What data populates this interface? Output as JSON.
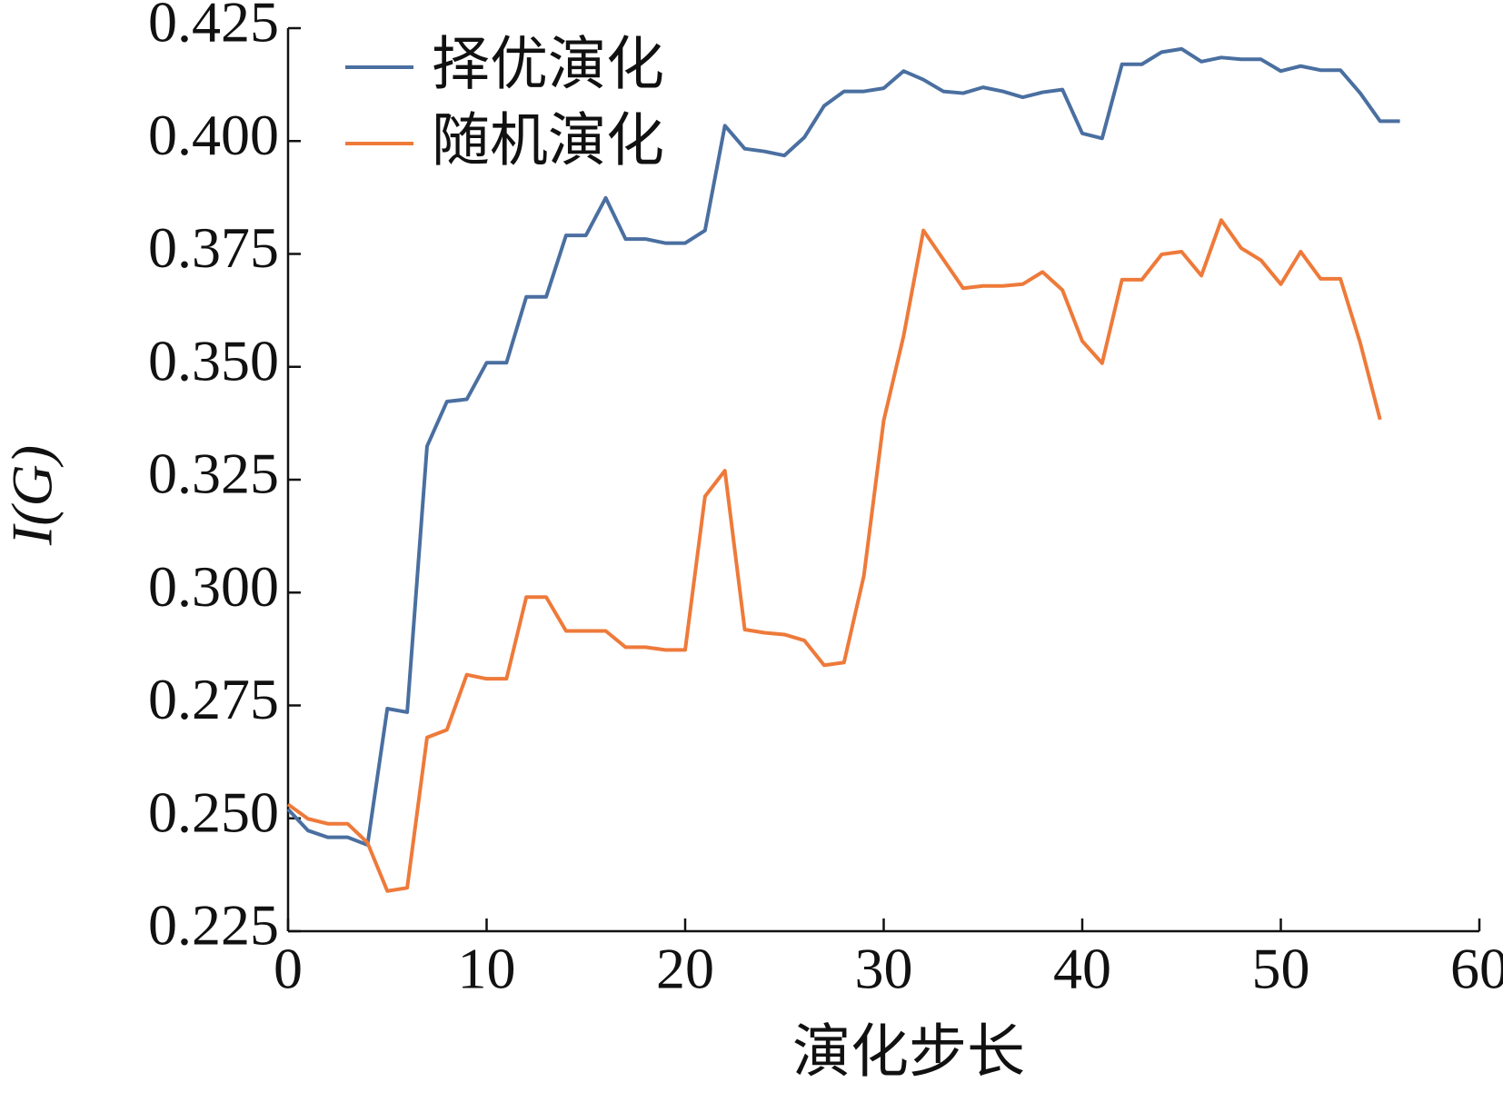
{
  "chart_data": {
    "type": "line",
    "xlabel": "演化步长",
    "ylabel": "I(G)",
    "xlim": [
      0,
      60
    ],
    "xticks": [
      0,
      10,
      20,
      30,
      40,
      50,
      60
    ],
    "ylim": [
      0.225,
      0.425
    ],
    "yticks": [
      0.225,
      {
        "value": 0.25,
        "label": "0.250"
      },
      0.275,
      {
        "value": 0.3,
        "label": "0.300"
      },
      0.325,
      {
        "value": 0.35,
        "label": "0.350"
      },
      0.375,
      {
        "value": 0.4,
        "label": "0.400"
      },
      0.425
    ],
    "legend": "upper left",
    "grid": false,
    "series": [
      {
        "name": "择优演化",
        "color": "#4a6fa0",
        "x": [
          0,
          1,
          2,
          3,
          4,
          5,
          6,
          7,
          8,
          9,
          10,
          11,
          12,
          13,
          14,
          15,
          16,
          17,
          18,
          19,
          20,
          21,
          22,
          23,
          24,
          25,
          26,
          27,
          28,
          29,
          30,
          31,
          32,
          33,
          34,
          35,
          36,
          37,
          38,
          39,
          40,
          41,
          42,
          43,
          44,
          45,
          46,
          47,
          48,
          49,
          50,
          51,
          52,
          53,
          54,
          55,
          56
        ],
        "values": [
          0.252,
          0.2473,
          0.2458,
          0.2458,
          0.2441,
          0.2743,
          0.2735,
          0.3324,
          0.3423,
          0.3428,
          0.3509,
          0.3509,
          0.3655,
          0.3655,
          0.3791,
          0.3791,
          0.3874,
          0.3783,
          0.3783,
          0.3774,
          0.3774,
          0.3802,
          0.4034,
          0.3983,
          0.3977,
          0.3968,
          0.4008,
          0.4078,
          0.411,
          0.411,
          0.4117,
          0.4155,
          0.4136,
          0.411,
          0.4106,
          0.4119,
          0.411,
          0.4097,
          0.4108,
          0.4114,
          0.4017,
          0.4006,
          0.417,
          0.417,
          0.4197,
          0.4204,
          0.4176,
          0.4185,
          0.4181,
          0.4181,
          0.4155,
          0.4166,
          0.4157,
          0.4157,
          0.4106,
          0.4044,
          0.4044
        ]
      },
      {
        "name": "随机演化",
        "color": "#ee7a3a",
        "x": [
          0,
          1,
          2,
          3,
          4,
          5,
          6,
          7,
          8,
          9,
          10,
          11,
          12,
          13,
          14,
          15,
          16,
          17,
          18,
          19,
          20,
          21,
          22,
          23,
          24,
          25,
          26,
          27,
          28,
          29,
          30,
          31,
          32,
          33,
          34,
          35,
          36,
          37,
          38,
          39,
          40,
          41,
          42,
          43,
          44,
          45,
          46,
          47,
          48,
          49,
          50,
          51,
          52,
          53,
          54,
          55
        ],
        "values": [
          0.2531,
          0.2499,
          0.2488,
          0.2488,
          0.2446,
          0.2339,
          0.2346,
          0.2679,
          0.2696,
          0.2818,
          0.2809,
          0.2809,
          0.299,
          0.299,
          0.2915,
          0.2915,
          0.2915,
          0.2879,
          0.2879,
          0.2873,
          0.2873,
          0.3213,
          0.327,
          0.2918,
          0.2911,
          0.2907,
          0.2894,
          0.2839,
          0.2845,
          0.3037,
          0.3381,
          0.3568,
          0.3802,
          0.3738,
          0.3674,
          0.3679,
          0.3679,
          0.3683,
          0.371,
          0.367,
          0.3557,
          0.3508,
          0.3693,
          0.3693,
          0.3749,
          0.3755,
          0.3702,
          0.3825,
          0.3763,
          0.3736,
          0.3683,
          0.3755,
          0.3695,
          0.3695,
          0.3553,
          0.3383
        ]
      }
    ]
  }
}
